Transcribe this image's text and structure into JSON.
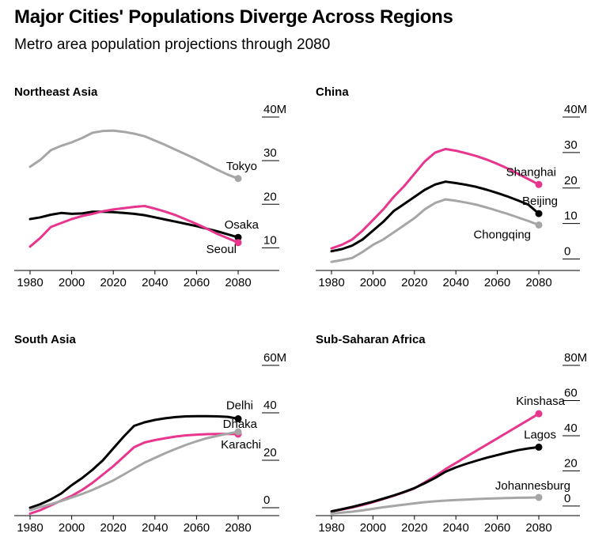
{
  "title": "Major Cities' Populations Diverge Across Regions",
  "subtitle": "Metro area population projections through 2080",
  "colors": {
    "pink": "#e8368f",
    "black": "#000000",
    "gray": "#a6a6a6",
    "axis": "#000000"
  },
  "chart_data": [
    {
      "type": "line",
      "title": "Northeast Asia",
      "xlabel": "",
      "ylabel": "",
      "xlim": [
        1980,
        2080
      ],
      "ylim": [
        5,
        40
      ],
      "xticks": [
        "1980",
        "2000",
        "2020",
        "2040",
        "2060",
        "2080"
      ],
      "yticks": [
        "40M",
        "30",
        "20",
        "10"
      ],
      "ytick_values": [
        40,
        30,
        20,
        10
      ],
      "series": [
        {
          "name": "Tokyo",
          "color": "gray",
          "label_anchor": "end",
          "x": [
            1980,
            1985,
            1990,
            1995,
            2000,
            2005,
            2010,
            2015,
            2020,
            2025,
            2030,
            2035,
            2040,
            2045,
            2050,
            2055,
            2060,
            2065,
            2070,
            2075,
            2080
          ],
          "values": [
            28.6,
            30.2,
            32.4,
            33.4,
            34.2,
            35.2,
            36.4,
            36.8,
            36.9,
            36.6,
            36.2,
            35.6,
            34.6,
            33.6,
            32.5,
            31.4,
            30.3,
            29.1,
            27.9,
            26.8,
            25.9
          ]
        },
        {
          "name": "Osaka",
          "color": "black",
          "label_anchor": "end",
          "x": [
            1980,
            1985,
            1990,
            1995,
            2000,
            2005,
            2010,
            2015,
            2020,
            2025,
            2030,
            2035,
            2040,
            2045,
            2050,
            2055,
            2060,
            2065,
            2070,
            2075,
            2080
          ],
          "values": [
            16.6,
            17.0,
            17.6,
            18.0,
            17.8,
            17.9,
            18.3,
            18.3,
            18.2,
            18.0,
            17.8,
            17.5,
            17.0,
            16.5,
            16.0,
            15.5,
            15.0,
            14.4,
            13.8,
            13.1,
            12.4
          ]
        },
        {
          "name": "Seoul",
          "color": "pink",
          "label_anchor": "end",
          "x": [
            1980,
            1985,
            1990,
            1995,
            2000,
            2005,
            2010,
            2015,
            2020,
            2025,
            2030,
            2035,
            2040,
            2045,
            2050,
            2055,
            2060,
            2065,
            2070,
            2075,
            2080
          ],
          "values": [
            10.3,
            12.3,
            14.8,
            15.7,
            16.6,
            17.3,
            17.8,
            18.4,
            18.8,
            19.1,
            19.4,
            19.6,
            19.0,
            18.3,
            17.5,
            16.5,
            15.5,
            14.4,
            13.2,
            12.2,
            11.2
          ]
        }
      ]
    },
    {
      "type": "line",
      "title": "China",
      "xlabel": "",
      "ylabel": "",
      "xlim": [
        1980,
        2080
      ],
      "ylim": [
        -3,
        40
      ],
      "xticks": [
        "1980",
        "2000",
        "2020",
        "2040",
        "2060",
        "2080"
      ],
      "yticks": [
        "40M",
        "30",
        "20",
        "10",
        "0"
      ],
      "ytick_values": [
        40,
        30,
        20,
        10,
        0
      ],
      "series": [
        {
          "name": "Shanghai",
          "color": "pink",
          "label_anchor": "end",
          "x": [
            1980,
            1985,
            1990,
            1995,
            2000,
            2005,
            2010,
            2015,
            2020,
            2025,
            2030,
            2035,
            2040,
            2045,
            2050,
            2055,
            2060,
            2065,
            2070,
            2075,
            2080
          ],
          "values": [
            3.0,
            4.0,
            5.5,
            8.0,
            11.0,
            14.0,
            17.5,
            20.5,
            24.0,
            27.5,
            30.0,
            31.0,
            30.5,
            29.8,
            29.0,
            28.0,
            26.8,
            25.5,
            24.0,
            22.5,
            21.0
          ]
        },
        {
          "name": "Beijing",
          "color": "black",
          "label_anchor": "end",
          "x": [
            1980,
            1985,
            1990,
            1995,
            2000,
            2005,
            2010,
            2015,
            2020,
            2025,
            2030,
            2035,
            2040,
            2045,
            2050,
            2055,
            2060,
            2065,
            2070,
            2075,
            2080
          ],
          "values": [
            2.2,
            2.8,
            3.8,
            5.5,
            8.0,
            10.5,
            13.5,
            15.5,
            17.5,
            19.5,
            21.0,
            21.8,
            21.4,
            20.9,
            20.3,
            19.5,
            18.6,
            17.6,
            16.5,
            15.3,
            12.8
          ]
        },
        {
          "name": "Chongqing",
          "color": "gray",
          "label_anchor": "end",
          "x": [
            1980,
            1985,
            1990,
            1995,
            2000,
            2005,
            2010,
            2015,
            2020,
            2025,
            2030,
            2035,
            2040,
            2045,
            2050,
            2055,
            2060,
            2065,
            2070,
            2075,
            2080
          ],
          "values": [
            -0.8,
            -0.3,
            0.3,
            2.0,
            4.0,
            5.5,
            7.5,
            9.5,
            11.5,
            14.0,
            15.8,
            16.8,
            16.4,
            15.9,
            15.3,
            14.5,
            13.6,
            12.7,
            11.7,
            10.7,
            9.6
          ]
        }
      ]
    },
    {
      "type": "line",
      "title": "South Asia",
      "xlabel": "",
      "ylabel": "",
      "xlim": [
        1980,
        2080
      ],
      "ylim": [
        -3,
        60
      ],
      "xticks": [
        "1980",
        "2000",
        "2020",
        "2040",
        "2060",
        "2080"
      ],
      "yticks": [
        "60M",
        "40",
        "20",
        "0"
      ],
      "ytick_values": [
        60,
        40,
        20,
        0
      ],
      "series": [
        {
          "name": "Delhi",
          "color": "black",
          "label_anchor": "end",
          "x": [
            1980,
            1985,
            1990,
            1995,
            2000,
            2005,
            2010,
            2015,
            2020,
            2025,
            2030,
            2035,
            2040,
            2045,
            2050,
            2055,
            2060,
            2065,
            2070,
            2075,
            2080
          ],
          "values": [
            0,
            1.5,
            3.5,
            6.0,
            9.5,
            12.5,
            16.0,
            20.0,
            25.0,
            30.0,
            34.5,
            36.0,
            37.0,
            37.7,
            38.2,
            38.5,
            38.6,
            38.6,
            38.5,
            38.3,
            37.5
          ]
        },
        {
          "name": "Dhaka",
          "color": "pink",
          "label_anchor": "end",
          "x": [
            1980,
            1985,
            1990,
            1995,
            2000,
            2005,
            2010,
            2015,
            2020,
            2025,
            2030,
            2035,
            2040,
            2045,
            2050,
            2055,
            2060,
            2065,
            2070,
            2075,
            2080
          ],
          "values": [
            -2.5,
            -1.0,
            1.0,
            3.0,
            5.0,
            7.5,
            10.5,
            14.0,
            17.5,
            21.5,
            25.5,
            27.5,
            28.5,
            29.3,
            30.0,
            30.5,
            30.8,
            31.0,
            31.1,
            31.1,
            31.0
          ]
        },
        {
          "name": "Karachi",
          "color": "gray",
          "label_anchor": "end",
          "x": [
            1980,
            1985,
            1990,
            1995,
            2000,
            2005,
            2010,
            2015,
            2020,
            2025,
            2030,
            2035,
            2040,
            2045,
            2050,
            2055,
            2060,
            2065,
            2070,
            2075,
            2080
          ],
          "values": [
            -1.0,
            0.3,
            1.5,
            2.8,
            4.3,
            5.8,
            7.5,
            9.5,
            11.5,
            14.0,
            16.5,
            19.0,
            21.0,
            23.0,
            24.8,
            26.5,
            28.0,
            29.3,
            30.3,
            31.2,
            32.0
          ]
        }
      ]
    },
    {
      "type": "line",
      "title": "Sub-Saharan Africa",
      "xlabel": "",
      "ylabel": "",
      "xlim": [
        1980,
        2080
      ],
      "ylim": [
        -5,
        80
      ],
      "xticks": [
        "1980",
        "2000",
        "2020",
        "2040",
        "2060",
        "2080"
      ],
      "yticks": [
        "80M",
        "60",
        "40",
        "20",
        "0"
      ],
      "ytick_values": [
        80,
        60,
        40,
        20,
        0
      ],
      "series": [
        {
          "name": "Kinshasa",
          "color": "pink",
          "label_anchor": "end",
          "x": [
            1980,
            1985,
            1990,
            1995,
            2000,
            2005,
            2010,
            2015,
            2020,
            2025,
            2030,
            2035,
            2040,
            2045,
            2050,
            2055,
            2060,
            2065,
            2070,
            2075,
            2080
          ],
          "values": [
            -3.0,
            -2.0,
            -0.8,
            0.6,
            2.2,
            4.0,
            5.8,
            7.8,
            10.0,
            13.5,
            17.0,
            21.0,
            24.5,
            28.0,
            31.5,
            35.0,
            38.5,
            42.0,
            45.5,
            49.0,
            52.5
          ]
        },
        {
          "name": "Lagos",
          "color": "black",
          "label_anchor": "end",
          "x": [
            1980,
            1985,
            1990,
            1995,
            2000,
            2005,
            2010,
            2015,
            2020,
            2025,
            2030,
            2035,
            2040,
            2045,
            2050,
            2055,
            2060,
            2065,
            2070,
            2075,
            2080
          ],
          "values": [
            -3.0,
            -1.8,
            -0.5,
            1.0,
            2.5,
            4.2,
            6.0,
            8.0,
            10.2,
            13.0,
            16.0,
            19.5,
            22.0,
            24.0,
            25.8,
            27.5,
            29.0,
            30.5,
            31.8,
            32.8,
            33.5
          ]
        },
        {
          "name": "Johannesburg",
          "color": "gray",
          "label_anchor": "end",
          "x": [
            1980,
            1985,
            1990,
            1995,
            2000,
            2005,
            2010,
            2015,
            2020,
            2025,
            2030,
            2035,
            2040,
            2045,
            2050,
            2055,
            2060,
            2065,
            2070,
            2075,
            2080
          ],
          "values": [
            -4.3,
            -3.8,
            -3.2,
            -2.5,
            -1.6,
            -0.7,
            0.1,
            0.8,
            1.5,
            2.2,
            2.7,
            3.1,
            3.4,
            3.7,
            4.0,
            4.2,
            4.4,
            4.6,
            4.7,
            4.8,
            4.9
          ]
        }
      ]
    }
  ]
}
